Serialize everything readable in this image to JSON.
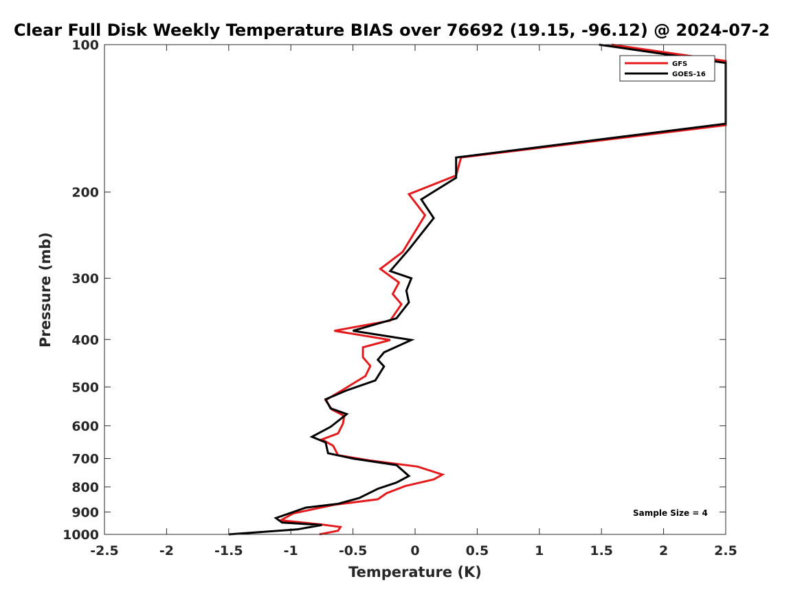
{
  "chart_data": {
    "type": "line",
    "title": "Clear Full Disk Weekly Temperature BIAS over 76692 (19.15, -96.12) @ 2024-07-2",
    "xlabel": "Temperature (K)",
    "ylabel": "Pressure (mb)",
    "xlim": [
      -2.5,
      2.5
    ],
    "ylim": [
      1000,
      100
    ],
    "y_scale": "log",
    "x_ticks": [
      -2.5,
      -2,
      -1.5,
      -1,
      -0.5,
      0,
      0.5,
      1,
      1.5,
      2,
      2.5
    ],
    "x_tick_labels": [
      "-2.5",
      "-2",
      "-1.5",
      "-1",
      "-0.5",
      "0",
      "0.5",
      "1",
      "1.5",
      "2",
      "2.5"
    ],
    "y_ticks": [
      100,
      200,
      300,
      400,
      500,
      600,
      700,
      800,
      900,
      1000
    ],
    "y_tick_labels": [
      "100",
      "200",
      "300",
      "400",
      "500",
      "600",
      "700",
      "800",
      "900",
      "1000"
    ],
    "grid": false,
    "legend": {
      "placement": "top-right",
      "entries": [
        {
          "name": "GFS",
          "color": "#e41a1c"
        },
        {
          "name": "GOES-16",
          "color": "#000000"
        }
      ]
    },
    "annotation": "Sample Size = 4",
    "series": [
      {
        "name": "GFS",
        "color": "#e41a1c",
        "points": [
          [
            1.58,
            100
          ],
          [
            2.5,
            108
          ],
          [
            2.5,
            146
          ],
          [
            0.37,
            170
          ],
          [
            0.33,
            185
          ],
          [
            -0.05,
            202
          ],
          [
            0.08,
            223
          ],
          [
            -0.1,
            265
          ],
          [
            -0.28,
            287
          ],
          [
            -0.13,
            306
          ],
          [
            -0.18,
            323
          ],
          [
            -0.11,
            339
          ],
          [
            -0.2,
            366
          ],
          [
            -0.65,
            384
          ],
          [
            -0.2,
            401
          ],
          [
            -0.42,
            415
          ],
          [
            -0.42,
            435
          ],
          [
            -0.36,
            453
          ],
          [
            -0.4,
            475
          ],
          [
            -0.57,
            505
          ],
          [
            -0.72,
            532
          ],
          [
            -0.67,
            556
          ],
          [
            -0.57,
            573
          ],
          [
            -0.58,
            594
          ],
          [
            -0.62,
            622
          ],
          [
            -0.75,
            640
          ],
          [
            -0.66,
            659
          ],
          [
            -0.62,
            689
          ],
          [
            -0.37,
            706
          ],
          [
            0.02,
            727
          ],
          [
            0.22,
            755
          ],
          [
            0.15,
            772
          ],
          [
            -0.08,
            797
          ],
          [
            -0.23,
            824
          ],
          [
            -0.3,
            848
          ],
          [
            -0.65,
            870
          ],
          [
            -0.98,
            906
          ],
          [
            -1.08,
            936
          ],
          [
            -0.75,
            955
          ],
          [
            -0.6,
            966
          ],
          [
            -0.62,
            983
          ],
          [
            -0.77,
            1000
          ]
        ]
      },
      {
        "name": "GOES-16",
        "color": "#000000",
        "points": [
          [
            1.48,
            100
          ],
          [
            2.5,
            109
          ],
          [
            2.5,
            145
          ],
          [
            0.33,
            170
          ],
          [
            0.33,
            187
          ],
          [
            0.05,
            207
          ],
          [
            0.15,
            226
          ],
          [
            -0.05,
            262
          ],
          [
            -0.2,
            290
          ],
          [
            -0.03,
            300
          ],
          [
            -0.07,
            318
          ],
          [
            -0.05,
            336
          ],
          [
            -0.15,
            362
          ],
          [
            -0.5,
            384
          ],
          [
            -0.03,
            401
          ],
          [
            -0.25,
            425
          ],
          [
            -0.3,
            440
          ],
          [
            -0.25,
            454
          ],
          [
            -0.32,
            485
          ],
          [
            -0.55,
            508
          ],
          [
            -0.72,
            530
          ],
          [
            -0.68,
            553
          ],
          [
            -0.55,
            568
          ],
          [
            -0.68,
            603
          ],
          [
            -0.83,
            632
          ],
          [
            -0.72,
            649
          ],
          [
            -0.7,
            683
          ],
          [
            -0.5,
            700
          ],
          [
            -0.15,
            722
          ],
          [
            -0.05,
            760
          ],
          [
            -0.15,
            784
          ],
          [
            -0.3,
            807
          ],
          [
            -0.45,
            843
          ],
          [
            -0.62,
            866
          ],
          [
            -0.88,
            882
          ],
          [
            -1.12,
            926
          ],
          [
            -1.07,
            946
          ],
          [
            -0.75,
            957
          ],
          [
            -0.95,
            977
          ],
          [
            -1.5,
            1000
          ]
        ]
      }
    ]
  }
}
